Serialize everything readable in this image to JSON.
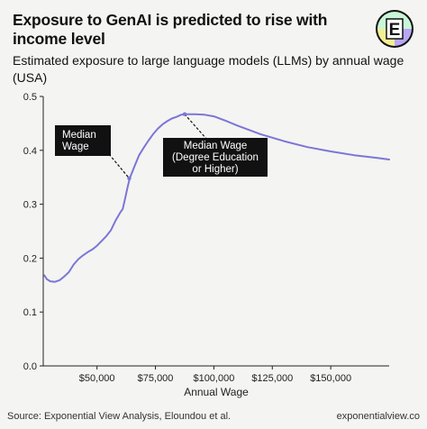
{
  "header": {
    "title": "Exposure to GenAI is predicted to rise with income level",
    "subtitle": "Estimated exposure to large language models (LLMs) by annual wage (USA)",
    "logo_letter": "E"
  },
  "footer": {
    "source": "Source: Exponential View Analysis, Eloundou et al.",
    "site": "exponentialview.co"
  },
  "colors": {
    "background": "#f4f4f2",
    "line": "#7b76d6",
    "annotation_box": "#111111",
    "logo_green": "#c9f7d8",
    "logo_purple": "#b9a6f4",
    "logo_yellow": "#f4ef93"
  },
  "chart_data": {
    "type": "line",
    "title": "",
    "xlabel": "Annual Wage",
    "ylabel": "",
    "xlim": [
      27000,
      175000
    ],
    "ylim": [
      0,
      0.5
    ],
    "grid": false,
    "x_ticks": [
      50000,
      75000,
      100000,
      125000,
      150000
    ],
    "x_tick_labels": [
      "$50,000",
      "$75,000",
      "$100,000",
      "$125,000",
      "$150,000"
    ],
    "y_ticks": [
      0,
      0.1,
      0.2,
      0.3,
      0.4,
      0.5
    ],
    "y_tick_labels": [
      "0.0",
      "0.1",
      "0.2",
      "0.3",
      "0.4",
      "0.5"
    ],
    "series": [
      {
        "x": [
          27500,
          28500,
          30000,
          32000,
          34000,
          36000,
          38000,
          40000,
          42000,
          44000,
          46000,
          48000,
          50000,
          52000,
          54000,
          56000,
          58000,
          60000,
          61000,
          62000,
          63000,
          64000,
          66000,
          68000,
          70000,
          72000,
          74000,
          76000,
          78000,
          80000,
          82000,
          84000,
          86000,
          88000,
          92000,
          96000,
          100000,
          105000,
          110000,
          120000,
          130000,
          140000,
          150000,
          160000,
          170000,
          175000
        ],
        "y": [
          0.168,
          0.161,
          0.157,
          0.156,
          0.159,
          0.166,
          0.174,
          0.188,
          0.198,
          0.205,
          0.211,
          0.216,
          0.223,
          0.232,
          0.241,
          0.252,
          0.27,
          0.285,
          0.291,
          0.31,
          0.33,
          0.348,
          0.37,
          0.391,
          0.405,
          0.418,
          0.43,
          0.44,
          0.448,
          0.454,
          0.459,
          0.462,
          0.466,
          0.467,
          0.467,
          0.466,
          0.463,
          0.455,
          0.446,
          0.43,
          0.417,
          0.406,
          0.398,
          0.391,
          0.386,
          0.383
        ]
      }
    ],
    "annotations": [
      {
        "label": "Median\nWage",
        "x": 63800,
        "y": 0.348
      },
      {
        "label": "Median Wage\n(Degree Education\nor Higher)",
        "x": 87500,
        "y": 0.467
      }
    ]
  }
}
